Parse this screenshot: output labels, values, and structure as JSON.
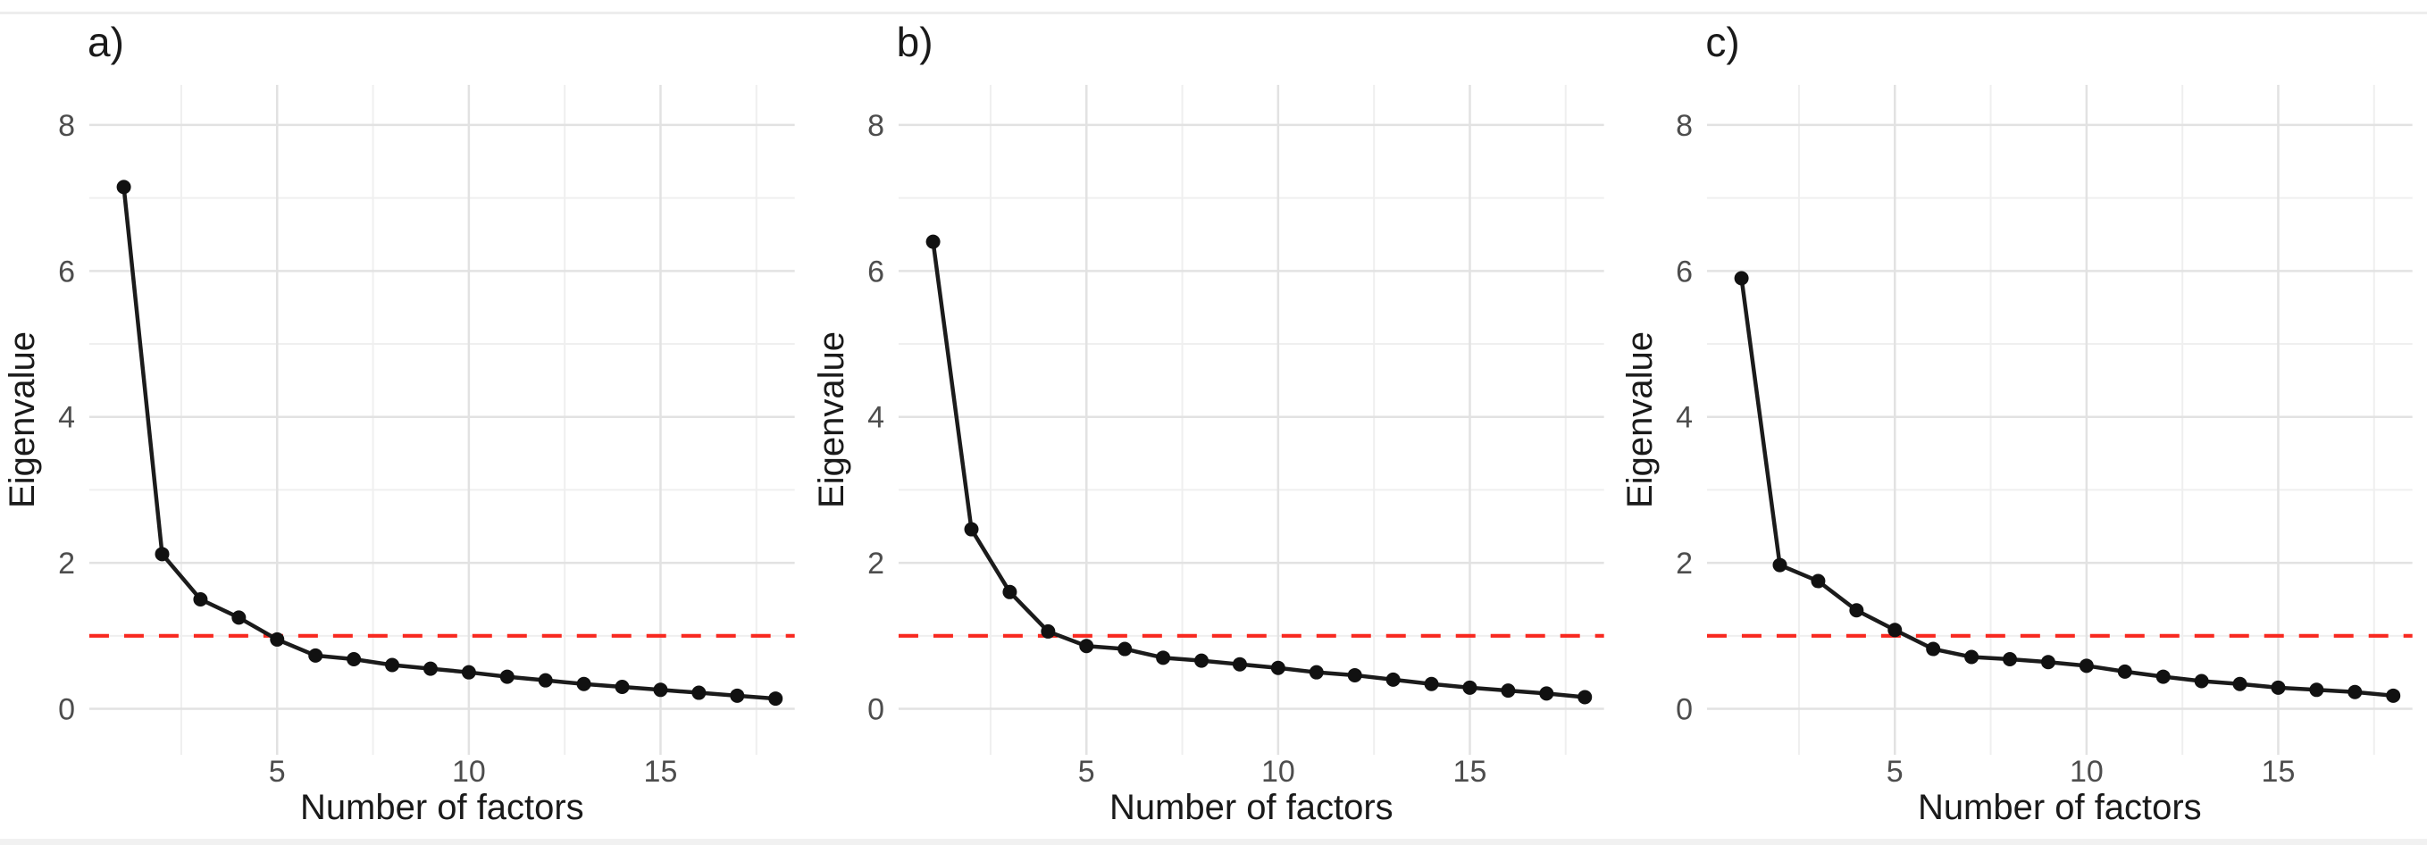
{
  "figure": {
    "background": "#ffffff",
    "colors": {
      "line": "#1b1b1b",
      "point": "#111111",
      "kaiser_line": "#f8281f",
      "grid_major": "#e2e2e2",
      "grid_minor": "#efefef",
      "tick_label": "#4d4d4d",
      "axis_title": "#1a1a1a",
      "panel_label": "#1a1a1a"
    },
    "kaiser_threshold": 1
  },
  "chart_data": [
    {
      "type": "line",
      "panel_label": "a)",
      "xlabel": "Number of factors",
      "ylabel": "Eigenvalue",
      "x": [
        1,
        2,
        3,
        4,
        5,
        6,
        7,
        8,
        9,
        10,
        11,
        12,
        13,
        14,
        15,
        16,
        17,
        18
      ],
      "values": [
        7.15,
        2.12,
        1.5,
        1.25,
        0.95,
        0.73,
        0.68,
        0.6,
        0.55,
        0.5,
        0.44,
        0.39,
        0.34,
        0.3,
        0.26,
        0.22,
        0.18,
        0.14
      ],
      "reference_line": {
        "y": 1,
        "style": "dashed",
        "color": "#f8281f"
      },
      "x_ticks": [
        5,
        10,
        15
      ],
      "y_ticks": [
        0,
        2,
        4,
        6,
        8
      ],
      "x_minor_gridlines": [
        2.5,
        7.5,
        12.5,
        17.5
      ],
      "y_minor_gridlines": [
        1,
        3,
        5,
        7
      ],
      "xlim": [
        0.1,
        18.5
      ],
      "ylim": [
        -0.63,
        8.55
      ],
      "grid": true,
      "legend": "none"
    },
    {
      "type": "line",
      "panel_label": "b)",
      "xlabel": "Number of factors",
      "ylabel": "Eigenvalue",
      "x": [
        1,
        2,
        3,
        4,
        5,
        6,
        7,
        8,
        9,
        10,
        11,
        12,
        13,
        14,
        15,
        16,
        17,
        18
      ],
      "values": [
        6.4,
        2.46,
        1.6,
        1.06,
        0.86,
        0.82,
        0.7,
        0.66,
        0.61,
        0.56,
        0.5,
        0.46,
        0.4,
        0.34,
        0.29,
        0.25,
        0.21,
        0.16
      ],
      "reference_line": {
        "y": 1,
        "style": "dashed",
        "color": "#f8281f"
      },
      "x_ticks": [
        5,
        10,
        15
      ],
      "y_ticks": [
        0,
        2,
        4,
        6,
        8
      ],
      "x_minor_gridlines": [
        2.5,
        7.5,
        12.5,
        17.5
      ],
      "y_minor_gridlines": [
        1,
        3,
        5,
        7
      ],
      "xlim": [
        0.1,
        18.5
      ],
      "ylim": [
        -0.63,
        8.55
      ],
      "grid": true,
      "legend": "none"
    },
    {
      "type": "line",
      "panel_label": "c)",
      "xlabel": "Number of factors",
      "ylabel": "Eigenvalue",
      "x": [
        1,
        2,
        3,
        4,
        5,
        6,
        7,
        8,
        9,
        10,
        11,
        12,
        13,
        14,
        15,
        16,
        17,
        18
      ],
      "values": [
        5.9,
        1.97,
        1.75,
        1.35,
        1.08,
        0.82,
        0.71,
        0.68,
        0.64,
        0.59,
        0.51,
        0.44,
        0.38,
        0.34,
        0.29,
        0.26,
        0.23,
        0.18
      ],
      "reference_line": {
        "y": 1,
        "style": "dashed",
        "color": "#f8281f"
      },
      "x_ticks": [
        5,
        10,
        15
      ],
      "y_ticks": [
        0,
        2,
        4,
        6,
        8
      ],
      "x_minor_gridlines": [
        2.5,
        7.5,
        12.5,
        17.5
      ],
      "y_minor_gridlines": [
        1,
        3,
        5,
        7
      ],
      "xlim": [
        0.1,
        18.5
      ],
      "ylim": [
        -0.63,
        8.55
      ],
      "grid": true,
      "legend": "none"
    }
  ]
}
